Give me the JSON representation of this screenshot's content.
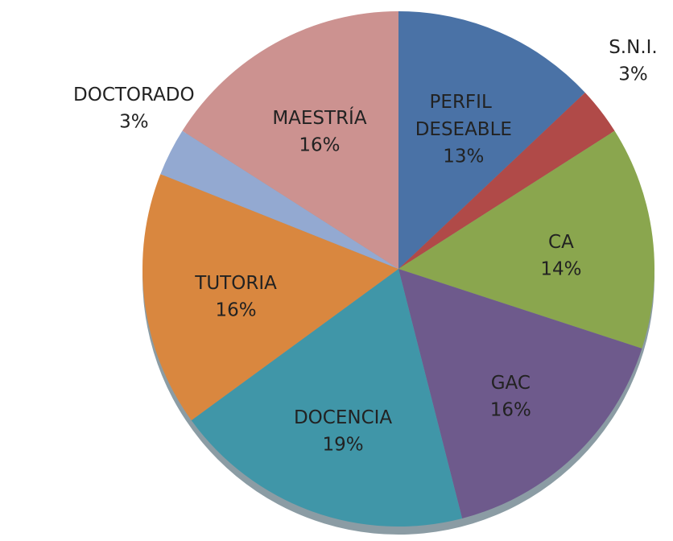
{
  "chart_data": {
    "type": "pie",
    "categories": [
      "PERFIL DESEABLE",
      "S.N.I.",
      "CA",
      "GAC",
      "DOCENCIA",
      "TUTORIA",
      "DOCTORADO",
      "MAESTRÍA"
    ],
    "values": [
      13,
      3,
      14,
      16,
      19,
      16,
      3,
      16
    ],
    "value_labels": [
      "13%",
      "3%",
      "14%",
      "16%",
      "19%",
      "16%",
      "3%",
      "16%"
    ],
    "colors": [
      "#4a72a6",
      "#b04a48",
      "#8aa64e",
      "#6e5a8c",
      "#4096a8",
      "#d9873f",
      "#93a9d1",
      "#cc9290"
    ]
  }
}
